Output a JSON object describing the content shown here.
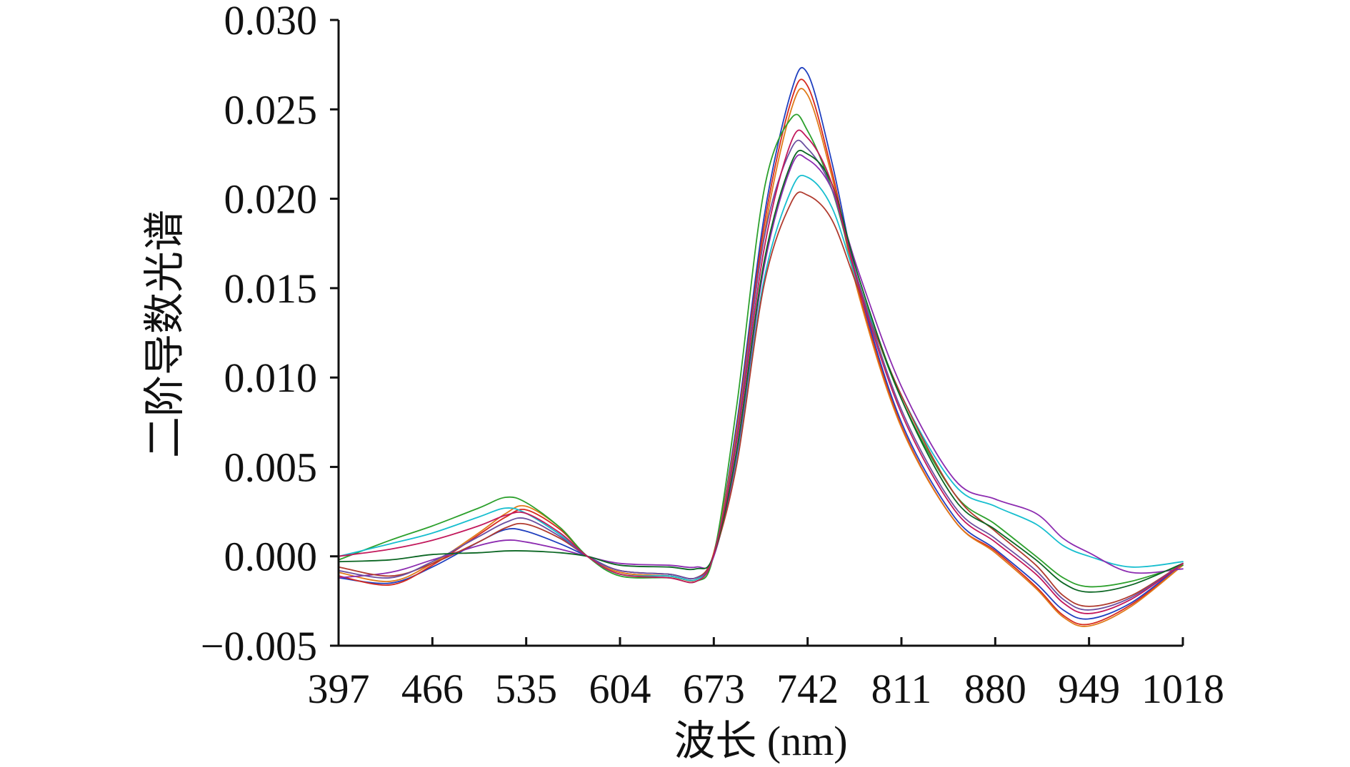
{
  "chart_data": {
    "type": "line",
    "xlabel": "波长 (nm)",
    "ylabel": "二阶导数光谱",
    "xlim": [
      397,
      1018
    ],
    "ylim": [
      -0.005,
      0.03
    ],
    "xticks": [
      "397",
      "466",
      "535",
      "604",
      "673",
      "742",
      "811",
      "880",
      "949",
      "1018"
    ],
    "yticks": [
      "0.030",
      "0.025",
      "0.020",
      "0.015",
      "0.010",
      "0.005",
      "0.000",
      "−0.005"
    ],
    "grid": false,
    "legend": "none",
    "x": [
      397,
      435,
      466,
      500,
      520,
      535,
      560,
      580,
      604,
      640,
      660,
      673,
      690,
      710,
      730,
      742,
      760,
      780,
      811,
      850,
      880,
      910,
      930,
      949,
      980,
      1018
    ],
    "series": [
      {
        "color": "#1f3fbf",
        "values": [
          -0.0012,
          -0.0015,
          -0.0006,
          0.0008,
          0.0015,
          0.0014,
          0.0007,
          0.0,
          -0.0008,
          -0.001,
          -0.0012,
          0.0001,
          0.0075,
          0.019,
          0.026,
          0.027,
          0.022,
          0.015,
          0.0075,
          0.0022,
          0.0004,
          -0.0015,
          -0.003,
          -0.0035,
          -0.0026,
          -0.0004
        ]
      },
      {
        "color": "#d62a1e",
        "values": [
          -0.0011,
          -0.0016,
          -0.0005,
          0.0012,
          0.0022,
          0.0026,
          0.0015,
          0.0,
          -0.0009,
          -0.0011,
          -0.0013,
          0.0002,
          0.0072,
          0.0185,
          0.0255,
          0.0263,
          0.0215,
          0.0147,
          0.0073,
          0.002,
          0.0003,
          -0.0017,
          -0.0033,
          -0.0038,
          -0.0027,
          -0.0005
        ]
      },
      {
        "color": "#e07b1a",
        "values": [
          -0.0009,
          -0.0014,
          -0.0004,
          0.0013,
          0.0024,
          0.0028,
          0.0016,
          0.0,
          -0.0009,
          -0.0011,
          -0.0013,
          0.0002,
          0.007,
          0.018,
          0.025,
          0.0258,
          0.0212,
          0.0145,
          0.0072,
          0.002,
          0.0002,
          -0.0018,
          -0.0034,
          -0.0039,
          -0.0028,
          -0.0005
        ]
      },
      {
        "color": "#2ca02c",
        "values": [
          -0.0002,
          0.0009,
          0.0017,
          0.0027,
          0.0033,
          0.003,
          0.0016,
          0.0,
          -0.0011,
          -0.0012,
          -0.0014,
          0.0001,
          0.0085,
          0.0205,
          0.0245,
          0.0238,
          0.0205,
          0.0152,
          0.0088,
          0.0035,
          0.0018,
          0.0,
          -0.0012,
          -0.0017,
          -0.0014,
          -0.0005
        ]
      },
      {
        "color": "#17becf",
        "values": [
          0.0,
          0.0007,
          0.0013,
          0.0022,
          0.0027,
          0.0024,
          0.0012,
          0.0,
          -0.001,
          -0.0011,
          -0.0013,
          0.0,
          0.0055,
          0.0155,
          0.0205,
          0.0212,
          0.0195,
          0.015,
          0.009,
          0.004,
          0.0028,
          0.0018,
          0.0006,
          0.0,
          -0.0006,
          -0.0003
        ]
      },
      {
        "color": "#8c2bb0",
        "values": [
          -0.0012,
          -0.0009,
          -0.0002,
          0.0006,
          0.0009,
          0.0008,
          0.0004,
          0.0,
          -0.0004,
          -0.0005,
          -0.0006,
          0.0,
          0.0058,
          0.0162,
          0.0218,
          0.0222,
          0.0205,
          0.0158,
          0.0095,
          0.0043,
          0.0032,
          0.0024,
          0.001,
          0.0002,
          -0.0009,
          -0.0007
        ]
      },
      {
        "color": "#b03a2e",
        "values": [
          -0.0006,
          -0.0011,
          -0.0004,
          0.0008,
          0.0016,
          0.0018,
          0.001,
          0.0,
          -0.0008,
          -0.001,
          -0.0012,
          0.0001,
          0.0052,
          0.0152,
          0.0198,
          0.0202,
          0.0188,
          0.0148,
          0.009,
          0.0035,
          0.0014,
          -0.0005,
          -0.0022,
          -0.0028,
          -0.0022,
          -0.0004
        ]
      },
      {
        "color": "#6b4fa0",
        "values": [
          -0.0008,
          -0.0012,
          -0.0003,
          0.0011,
          0.0019,
          0.0021,
          0.0011,
          0.0,
          -0.0008,
          -0.001,
          -0.0012,
          0.0001,
          0.0068,
          0.0178,
          0.0228,
          0.0228,
          0.0205,
          0.0152,
          0.0082,
          0.0028,
          0.001,
          -0.0008,
          -0.0024,
          -0.003,
          -0.0023,
          -0.0004
        ]
      },
      {
        "color": "#0b6623",
        "values": [
          -0.0003,
          -0.0002,
          0.0001,
          0.0002,
          0.0003,
          0.0003,
          0.0002,
          0.0,
          -0.0005,
          -0.0006,
          -0.0007,
          0.0001,
          0.006,
          0.0165,
          0.022,
          0.0225,
          0.0208,
          0.0155,
          0.0088,
          0.0032,
          0.0015,
          -0.0002,
          -0.0015,
          -0.002,
          -0.0016,
          -0.0004
        ]
      },
      {
        "color": "#c2185b",
        "values": [
          0.0,
          0.0004,
          0.0009,
          0.0017,
          0.0023,
          0.0024,
          0.0013,
          0.0,
          -0.001,
          -0.0012,
          -0.0014,
          0.0001,
          0.0065,
          0.0172,
          0.0232,
          0.0234,
          0.0208,
          0.015,
          0.008,
          0.0026,
          0.0008,
          -0.001,
          -0.0026,
          -0.0032,
          -0.0024,
          -0.0004
        ]
      }
    ]
  }
}
